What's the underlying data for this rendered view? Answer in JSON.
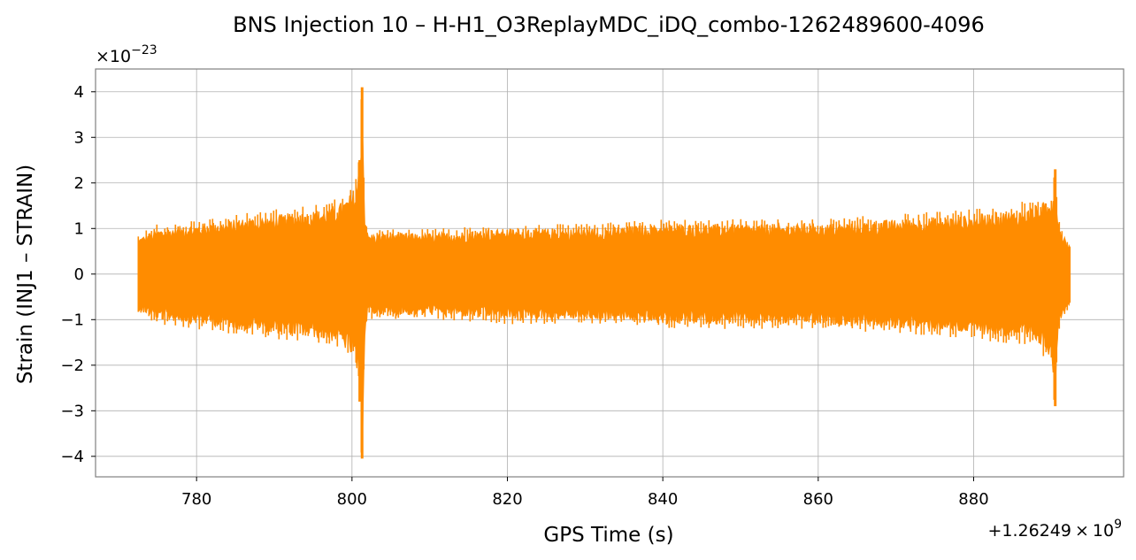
{
  "chart_data": {
    "type": "line",
    "title": "BNS Injection 10 – H-H1_O3ReplayMDC_iDQ_combo-1262489600-4096",
    "xlabel": "GPS Time (s)",
    "ylabel": "Strain (INJ1 – STRAIN)",
    "x_offset": {
      "base": "+1.26249",
      "times": "×",
      "exp_base": "10",
      "exp": "9"
    },
    "y_multiplier": {
      "prefix": "×10",
      "exp": "−23"
    },
    "xlim": [
      767,
      1000
    ],
    "ylim": [
      -4.45,
      4.5
    ],
    "xticks": [
      780,
      800,
      820,
      840,
      860,
      880
    ],
    "xtick_labels": [
      "780",
      "800",
      "820",
      "840",
      "860",
      "880"
    ],
    "yticks": [
      -4,
      -3,
      -2,
      -1,
      0,
      1,
      2,
      3,
      4
    ],
    "ytick_labels": [
      "−4",
      "−3",
      "−2",
      "−1",
      "0",
      "1",
      "2",
      "3",
      "4"
    ],
    "grid": true,
    "series": [
      {
        "color": "#ff8c00",
        "x_range": [
          772.5,
          892.5
        ],
        "envelope": {
          "x": [
            772.5,
            775,
            780,
            785,
            790,
            795,
            798,
            799.5,
            800.5,
            801,
            801.3,
            801.6,
            802,
            805,
            810,
            820,
            830,
            840,
            850,
            860,
            870,
            880,
            885,
            888,
            890,
            890.5,
            890.8,
            891.2,
            892.5
          ],
          "upper": [
            0.8,
            1.0,
            1.1,
            1.2,
            1.3,
            1.4,
            1.5,
            1.7,
            1.9,
            2.5,
            4.1,
            1.5,
            0.9,
            0.9,
            0.9,
            1.0,
            1.0,
            1.1,
            1.1,
            1.1,
            1.2,
            1.3,
            1.4,
            1.5,
            1.6,
            2.3,
            1.3,
            1.0,
            0.6
          ],
          "lower": [
            -0.8,
            -1.0,
            -1.1,
            -1.2,
            -1.3,
            -1.4,
            -1.5,
            -1.7,
            -2.0,
            -2.8,
            -4.05,
            -1.5,
            -0.9,
            -0.9,
            -0.9,
            -1.0,
            -1.0,
            -1.1,
            -1.1,
            -1.1,
            -1.2,
            -1.3,
            -1.4,
            -1.5,
            -1.8,
            -2.9,
            -1.4,
            -1.0,
            -0.6
          ]
        }
      }
    ]
  }
}
